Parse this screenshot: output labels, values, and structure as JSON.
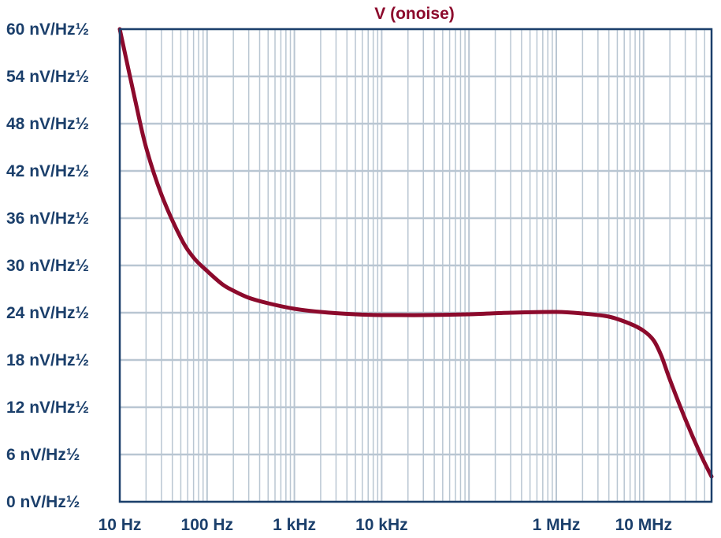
{
  "chart_data": {
    "type": "line",
    "title": "V (onoise)",
    "xlabel": "",
    "ylabel": "",
    "x_scale": "log",
    "xlim": [
      10,
      60000000
    ],
    "ylim": [
      0,
      60
    ],
    "grid": true,
    "x_ticks": [
      {
        "value": 10,
        "label": "10 Hz"
      },
      {
        "value": 100,
        "label": "100 Hz"
      },
      {
        "value": 1000,
        "label": "1 kHz"
      },
      {
        "value": 10000,
        "label": "10 kHz"
      },
      {
        "value": 1000000,
        "label": "1 MHz"
      },
      {
        "value": 10000000,
        "label": "10 MHz"
      }
    ],
    "y_ticks": [
      {
        "value": 0,
        "label": "0 nV/Hz½"
      },
      {
        "value": 6,
        "label": "6 nV/Hz½"
      },
      {
        "value": 12,
        "label": "12 nV/Hz½"
      },
      {
        "value": 18,
        "label": "18 nV/Hz½"
      },
      {
        "value": 24,
        "label": "24 nV/Hz½"
      },
      {
        "value": 30,
        "label": "30 nV/Hz½"
      },
      {
        "value": 36,
        "label": "36 nV/Hz½"
      },
      {
        "value": 42,
        "label": "42 nV/Hz½"
      },
      {
        "value": 48,
        "label": "48 nV/Hz½"
      },
      {
        "value": 54,
        "label": "54 nV/Hz½"
      },
      {
        "value": 60,
        "label": "60 nV/Hz½"
      }
    ],
    "series": [
      {
        "color": "#8c0a2c",
        "points": [
          [
            10,
            60
          ],
          [
            15,
            51
          ],
          [
            20,
            45
          ],
          [
            30,
            39
          ],
          [
            50,
            33.5
          ],
          [
            70,
            31
          ],
          [
            100,
            29.3
          ],
          [
            150,
            27.6
          ],
          [
            200,
            26.8
          ],
          [
            300,
            25.9
          ],
          [
            500,
            25.2
          ],
          [
            1000,
            24.5
          ],
          [
            2000,
            24.1
          ],
          [
            5000,
            23.8
          ],
          [
            10000,
            23.7
          ],
          [
            30000,
            23.7
          ],
          [
            100000,
            23.8
          ],
          [
            300000,
            24
          ],
          [
            1000000,
            24.1
          ],
          [
            2000000,
            23.9
          ],
          [
            4000000,
            23.5
          ],
          [
            7000000,
            22.6
          ],
          [
            10000000,
            21.7
          ],
          [
            13000000,
            20.5
          ],
          [
            16000000,
            18.5
          ],
          [
            20000000,
            15.5
          ],
          [
            30000000,
            10.5
          ],
          [
            45000000,
            6
          ],
          [
            60000000,
            3.2
          ]
        ]
      }
    ],
    "colors": {
      "axis": "#1b3f6b",
      "grid": "#b9c6d2",
      "line": "#8c0a2c",
      "title": "#8c0a2c",
      "tick_text": "#1b3f6b"
    }
  }
}
